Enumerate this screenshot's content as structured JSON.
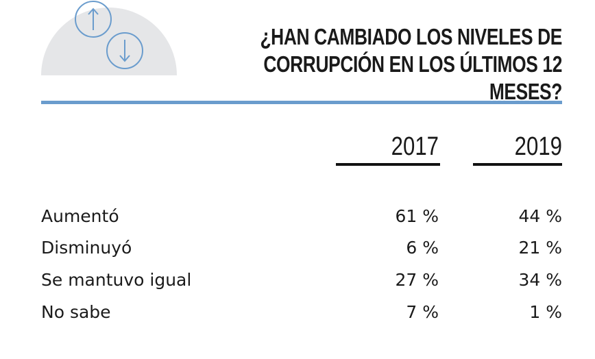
{
  "title_lines": [
    "¿HAN CAMBIADO LOS NIVELES DE",
    "CORRUPCIÓN EN LOS ÚLTIMOS 12 MESES?"
  ],
  "colors": {
    "accent_blue": "#6a9ccd",
    "semicircle_gray": "#e5e6e8",
    "text": "#1a1a1a"
  },
  "icons": [
    "arrow-up-circle-icon",
    "arrow-down-circle-icon"
  ],
  "chart_data": {
    "type": "table",
    "title": "¿HAN CAMBIADO LOS NIVELES DE CORRUPCIÓN EN LOS ÚLTIMOS 12 MESES?",
    "columns": [
      "2017",
      "2019"
    ],
    "rows": [
      {
        "label": "Aumentó",
        "values": [
          "61 %",
          "44 %"
        ]
      },
      {
        "label": "Disminuyó",
        "values": [
          "6 %",
          "21 %"
        ]
      },
      {
        "label": "Se mantuvo igual",
        "values": [
          "27 %",
          "34 %"
        ]
      },
      {
        "label": "No sabe",
        "values": [
          "7 %",
          "1 %"
        ]
      }
    ]
  }
}
